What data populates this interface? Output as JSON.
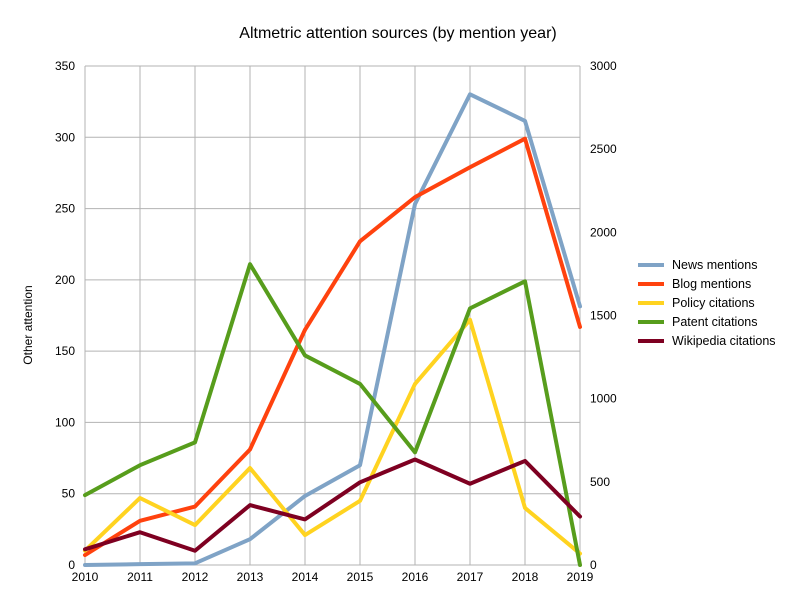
{
  "chart_data": {
    "type": "line",
    "title": "Altmetric attention sources (by mention year)",
    "ylabel": "Other attention",
    "x": [
      "2010",
      "2011",
      "2012",
      "2013",
      "2014",
      "2015",
      "2016",
      "2017",
      "2018",
      "2019"
    ],
    "ylim": [
      0,
      350
    ],
    "yticks": [
      "0",
      "50",
      "100",
      "150",
      "200",
      "250",
      "300",
      "350"
    ],
    "y2lim": [
      0,
      3000
    ],
    "y2ticks": [
      "0",
      "500",
      "1000",
      "1500",
      "2000",
      "2500",
      "3000"
    ],
    "grid": true,
    "legend_position": "right",
    "series": [
      {
        "name": "News mentions",
        "axis": "right",
        "color": "#7fa3c6",
        "values": [
          0,
          5,
          10,
          155,
          415,
          600,
          2170,
          2830,
          2670,
          1555
        ]
      },
      {
        "name": "Blog mentions",
        "axis": "left",
        "color": "#ff420e",
        "values": [
          7,
          31,
          41,
          81,
          165,
          227,
          258,
          279,
          299,
          167
        ]
      },
      {
        "name": "Policy citations",
        "axis": "left",
        "color": "#ffd320",
        "values": [
          10,
          47,
          28,
          68,
          21,
          45,
          127,
          172,
          40,
          8
        ]
      },
      {
        "name": "Patent citations",
        "axis": "left",
        "color": "#579d1c",
        "values": [
          49,
          70,
          86,
          211,
          147,
          127,
          79,
          180,
          199,
          0
        ]
      },
      {
        "name": "Wikipedia citations",
        "axis": "left",
        "color": "#7e0021",
        "values": [
          11,
          23,
          10,
          42,
          32,
          58,
          74,
          57,
          73,
          34
        ]
      }
    ]
  }
}
